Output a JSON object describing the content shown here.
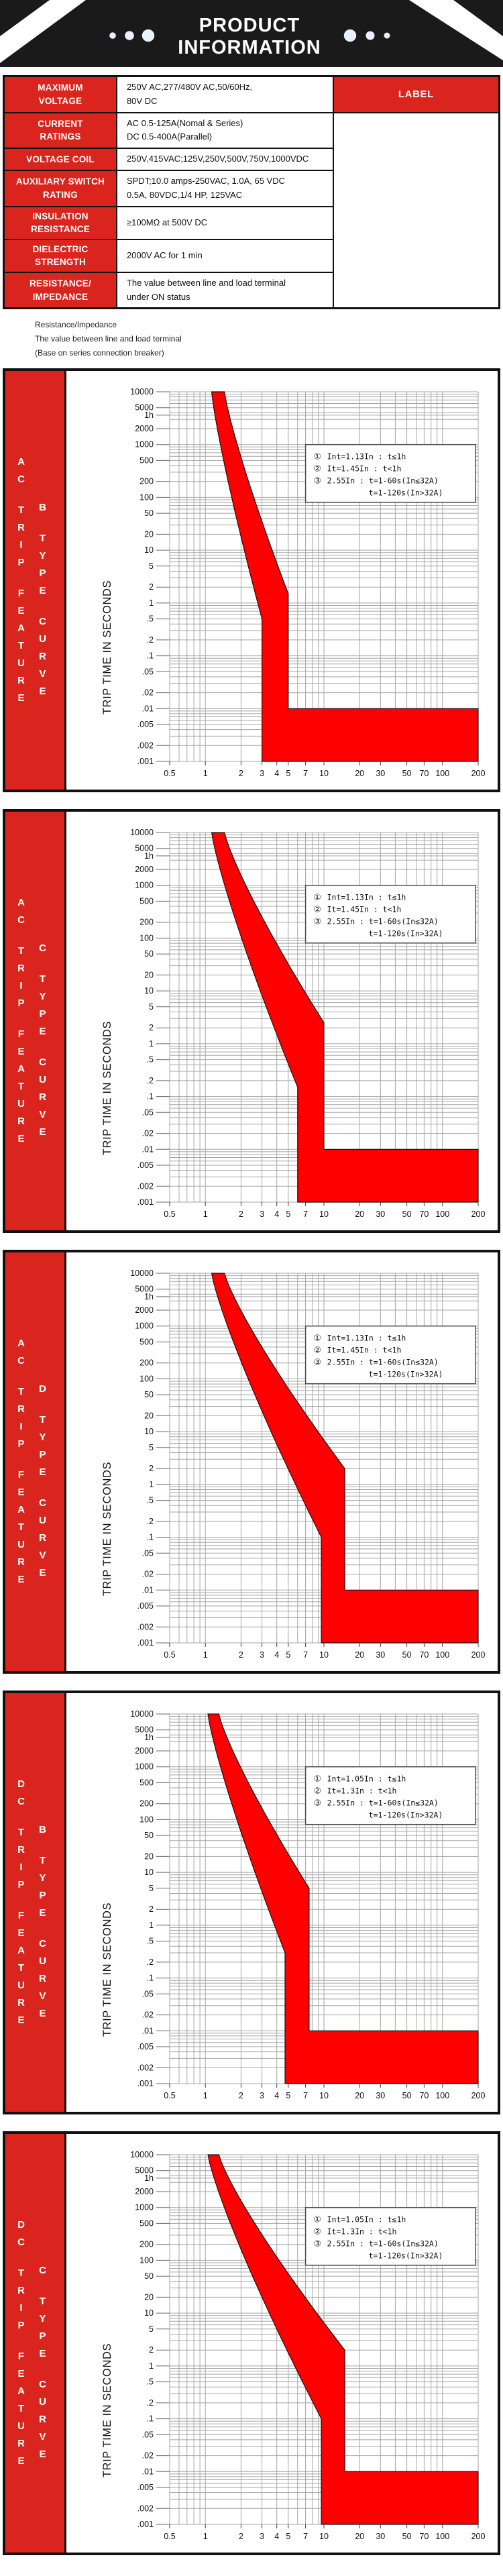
{
  "header": {
    "title_line1": "PRODUCT",
    "title_line2": "INFORMATION",
    "banner_color": "#1a1a1a",
    "dot_color": "#e9f2fc"
  },
  "accent_color": "#d9251d",
  "spec_table": {
    "label_header": "LABEL",
    "rows": [
      {
        "label": "MAXIMUM\nVOLTAGE",
        "value": "250V AC,277/480V AC,50/60Hz,\n80V DC"
      },
      {
        "label": "CURRENT\nRATINGS",
        "value": "AC 0.5-125A(Nomal & Series)\nDC 0.5-400A(Parallel)"
      },
      {
        "label": "VOLTAGE COIL",
        "value": "250V,415VAC;125V,250V,500V,750V,1000VDC"
      },
      {
        "label": "AUXILIARY SWITCH\nRATING",
        "value": "SPDT;10.0 amps-250VAC, 1.0A, 65 VDC\n0.5A, 80VDC,1/4 HP, 125VAC"
      },
      {
        "label": "INSULATION\nRESISTANCE",
        "value": "≥100MΩ at 500V DC"
      },
      {
        "label": "DIELECTRIC\nSTRENGTH",
        "value": "2000V AC for 1 min"
      },
      {
        "label": "RESISTANCE/\nIMPEDANCE",
        "value": "The value between line and load terminal\nunder ON status"
      }
    ]
  },
  "notes": [
    "Resistance/Impedance",
    "The value between line and load terminal",
    "(Base on series connection breaker)"
  ],
  "chart_data": {
    "shared_axes": {
      "type": "area",
      "xlim": [
        0.5,
        200
      ],
      "ylim": [
        0.001,
        10000
      ],
      "ylabel": "TRIP TIME IN SECONDS",
      "grid": true,
      "x_ticks": [
        0.5,
        1,
        2,
        3,
        4,
        5,
        7,
        10,
        20,
        30,
        50,
        70,
        100,
        200
      ],
      "y_ticks": [
        [
          10000,
          "10000"
        ],
        [
          5000,
          "5000"
        ],
        [
          3600,
          "1h"
        ],
        [
          2000,
          "2000"
        ],
        [
          1000,
          "1000"
        ],
        [
          500,
          "500"
        ],
        [
          200,
          "200"
        ],
        [
          100,
          "100"
        ],
        [
          50,
          "50"
        ],
        [
          20,
          "20"
        ],
        [
          10,
          "10"
        ],
        [
          5,
          "5"
        ],
        [
          2,
          "2"
        ],
        [
          1,
          "1"
        ],
        [
          0.5,
          ".5"
        ],
        [
          0.2,
          ".2"
        ],
        [
          0.1,
          ".1"
        ],
        [
          0.05,
          ".05"
        ],
        [
          0.02,
          ".02"
        ],
        [
          0.01,
          ".01"
        ],
        [
          0.005,
          ".005"
        ],
        [
          0.002,
          ".002"
        ],
        [
          0.001,
          ".001"
        ]
      ],
      "band_color": "#ff0000"
    },
    "charts": [
      {
        "id": "ac-b-type",
        "sidebar_col1": "AC TRIP FEATURE",
        "sidebar_col2": "B TYPE CURVE",
        "legend": [
          {
            "bullet": "①",
            "text": "Int=1.13In : t≤1h",
            "indent": 0
          },
          {
            "bullet": "②",
            "text": "It=1.45In : t<1h",
            "indent": 0
          },
          {
            "bullet": "③",
            "text": "2.55In : t=1-60s(In≤32A)",
            "indent": 0
          },
          {
            "bullet": "",
            "text": "t=1-120s(In>32A)",
            "indent": 62
          }
        ],
        "band": {
          "top_x": [
            1.13,
            1.45
          ],
          "magnetic_range": [
            3,
            5
          ],
          "knee_t": [
            0.5,
            1.5
          ],
          "instant_strip_t": [
            0.001,
            0.01
          ]
        }
      },
      {
        "id": "ac-c-type",
        "sidebar_col1": "AC TRIP FEATURE",
        "sidebar_col2": "C TYPE CURVE",
        "legend": [
          {
            "bullet": "①",
            "text": "Int=1.13In : t≤1h",
            "indent": 0
          },
          {
            "bullet": "②",
            "text": "It=1.45In : t<1h",
            "indent": 0
          },
          {
            "bullet": "③",
            "text": "2.55In : t=1-60s(In≤32A)",
            "indent": 0
          },
          {
            "bullet": "",
            "text": "t=1-120s(In>32A)",
            "indent": 62
          }
        ],
        "band": {
          "top_x": [
            1.13,
            1.45
          ],
          "magnetic_range": [
            6,
            10
          ],
          "knee_t": [
            0.15,
            2.5
          ],
          "instant_strip_t": [
            0.001,
            0.01
          ]
        }
      },
      {
        "id": "ac-d-type",
        "sidebar_col1": "AC TRIP FEATURE",
        "sidebar_col2": "D TYPE CURVE",
        "legend": [
          {
            "bullet": "①",
            "text": "Int=1.13In : t≤1h",
            "indent": 0
          },
          {
            "bullet": "②",
            "text": "It=1.45In : t<1h",
            "indent": 0
          },
          {
            "bullet": "③",
            "text": "2.55In : t=1-60s(In≤32A)",
            "indent": 0
          },
          {
            "bullet": "",
            "text": "t=1-120s(In>32A)",
            "indent": 62
          }
        ],
        "band": {
          "top_x": [
            1.13,
            1.45
          ],
          "magnetic_range": [
            9.5,
            15
          ],
          "knee_t": [
            0.1,
            2
          ],
          "instant_strip_t": [
            0.001,
            0.01
          ]
        }
      },
      {
        "id": "dc-b-type",
        "sidebar_col1": "DC TRIP FEATURE",
        "sidebar_col2": "B TYPE CURVE",
        "legend": [
          {
            "bullet": "①",
            "text": "Int=1.05In : t≤1h",
            "indent": 0
          },
          {
            "bullet": "②",
            "text": "It=1.3In : t<1h",
            "indent": 0
          },
          {
            "bullet": "③",
            "text": "2.55In : t=1-60s(In≤32A)",
            "indent": 0
          },
          {
            "bullet": "",
            "text": "t=1-120s(In>32A)",
            "indent": 62
          }
        ],
        "band": {
          "top_x": [
            1.05,
            1.3
          ],
          "magnetic_range": [
            4.7,
            7.5
          ],
          "knee_t": [
            0.3,
            5
          ],
          "instant_strip_t": [
            0.001,
            0.01
          ]
        }
      },
      {
        "id": "dc-c-type",
        "sidebar_col1": "DC TRIP FEATURE",
        "sidebar_col2": "C TYPE CURVE",
        "legend": [
          {
            "bullet": "①",
            "text": "Int=1.05In : t≤1h",
            "indent": 0
          },
          {
            "bullet": "②",
            "text": "It=1.3In : t<1h",
            "indent": 0
          },
          {
            "bullet": "③",
            "text": "2.55In : t=1-60s(In≤32A)",
            "indent": 0
          },
          {
            "bullet": "",
            "text": "t=1-120s(In>32A)",
            "indent": 62
          }
        ],
        "band": {
          "top_x": [
            1.05,
            1.3
          ],
          "magnetic_range": [
            9.5,
            15
          ],
          "knee_t": [
            0.1,
            2
          ],
          "instant_strip_t": [
            0.001,
            0.01
          ]
        }
      }
    ]
  }
}
